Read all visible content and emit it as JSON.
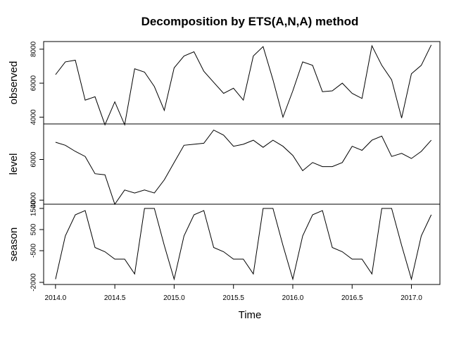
{
  "chart_data": {
    "type": "line",
    "title": "Decomposition by ETS(A,N,A) method",
    "xlabel": "Time",
    "x": [
      2014.0,
      2014.083,
      2014.167,
      2014.25,
      2014.333,
      2014.417,
      2014.5,
      2014.583,
      2014.667,
      2014.75,
      2014.833,
      2014.917,
      2015.0,
      2015.083,
      2015.167,
      2015.25,
      2015.333,
      2015.417,
      2015.5,
      2015.583,
      2015.667,
      2015.75,
      2015.833,
      2015.917,
      2016.0,
      2016.083,
      2016.167,
      2016.25,
      2016.333,
      2016.417,
      2016.5,
      2016.583,
      2016.667,
      2016.75,
      2016.833,
      2016.917,
      2017.0,
      2017.083,
      2017.167
    ],
    "x_ticks": [
      {
        "value": 2014.0,
        "label": "2014.0"
      },
      {
        "value": 2014.5,
        "label": "2014.5"
      },
      {
        "value": 2015.0,
        "label": "2015.0"
      },
      {
        "value": 2015.5,
        "label": "2015.5"
      },
      {
        "value": 2016.0,
        "label": "2016.0"
      },
      {
        "value": 2016.5,
        "label": "2016.5"
      },
      {
        "value": 2017.0,
        "label": "2017.0"
      }
    ],
    "xlim": [
      2013.9,
      2017.24
    ],
    "panels": [
      {
        "name": "observed",
        "ylim": [
          3600,
          8450
        ],
        "y_ticks": [
          {
            "value": 4000,
            "label": "4000"
          },
          {
            "value": 6000,
            "label": "6000"
          },
          {
            "value": 8000,
            "label": "8000"
          }
        ],
        "values": [
          6500,
          7250,
          7350,
          5000,
          5200,
          3550,
          4900,
          3550,
          6850,
          6650,
          5800,
          4400,
          6900,
          7600,
          7850,
          6700,
          6050,
          5400,
          5700,
          5000,
          7600,
          8150,
          6200,
          4000,
          5550,
          7250,
          7050,
          5500,
          5550,
          6000,
          5400,
          5100,
          8200,
          7050,
          6200,
          3950,
          6550,
          7050,
          8250
        ]
      },
      {
        "name": "level",
        "ylim": [
          3800,
          7750
        ],
        "y_ticks": [
          {
            "value": 4000,
            "label": "4000"
          },
          {
            "value": 6000,
            "label": "6000"
          }
        ],
        "values": [
          6850,
          6700,
          6400,
          6150,
          5300,
          5250,
          3800,
          4500,
          4350,
          4500,
          4350,
          5000,
          5850,
          6700,
          6750,
          6800,
          7450,
          7200,
          6650,
          6750,
          6950,
          6600,
          6950,
          6650,
          6200,
          5450,
          5850,
          5650,
          5650,
          5850,
          6650,
          6450,
          6950,
          7150,
          6150,
          6300,
          6050,
          6400,
          6950
        ]
      },
      {
        "name": "season",
        "ylim": [
          -2100,
          1700
        ],
        "y_ticks": [
          {
            "value": -2000,
            "label": "-2000"
          },
          {
            "value": -500,
            "label": "-500"
          },
          {
            "value": 500,
            "label": "500"
          },
          {
            "value": 1500,
            "label": "1500"
          }
        ],
        "values": [
          -1850,
          200,
          1200,
          1400,
          -350,
          -550,
          -900,
          -900,
          -1600,
          1500,
          1500,
          -250,
          -1850,
          200,
          1200,
          1400,
          -350,
          -550,
          -900,
          -900,
          -1600,
          1500,
          1500,
          -250,
          -1850,
          200,
          1200,
          1400,
          -350,
          -550,
          -900,
          -900,
          -1600,
          1500,
          1500,
          -250,
          -1850,
          200,
          1200
        ]
      }
    ]
  }
}
